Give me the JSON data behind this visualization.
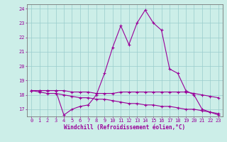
{
  "xlabel": "Windchill (Refroidissement éolien,°C)",
  "background_color": "#cceee8",
  "line_color": "#990099",
  "grid_color": "#99cccc",
  "xlim": [
    -0.5,
    23.5
  ],
  "ylim": [
    16.5,
    24.3
  ],
  "yticks": [
    17,
    18,
    19,
    20,
    21,
    22,
    23,
    24
  ],
  "xticks": [
    0,
    1,
    2,
    3,
    4,
    5,
    6,
    7,
    8,
    9,
    10,
    11,
    12,
    13,
    14,
    15,
    16,
    17,
    18,
    19,
    20,
    21,
    22,
    23
  ],
  "series1_x": [
    0,
    1,
    2,
    3,
    4,
    5,
    6,
    7,
    8,
    9,
    10,
    11,
    12,
    13,
    14,
    15,
    16,
    17,
    18,
    19,
    20,
    21,
    22,
    23
  ],
  "series1_y": [
    18.3,
    18.3,
    18.3,
    18.3,
    16.6,
    17.0,
    17.2,
    17.3,
    18.0,
    19.5,
    21.3,
    22.8,
    21.5,
    23.0,
    23.9,
    23.0,
    22.5,
    19.8,
    19.5,
    18.3,
    18.0,
    17.0,
    16.8,
    16.6
  ],
  "series2_x": [
    0,
    1,
    2,
    3,
    4,
    5,
    6,
    7,
    8,
    9,
    10,
    11,
    12,
    13,
    14,
    15,
    16,
    17,
    18,
    19,
    20,
    21,
    22,
    23
  ],
  "series2_y": [
    18.3,
    18.3,
    18.3,
    18.3,
    18.3,
    18.2,
    18.2,
    18.2,
    18.1,
    18.1,
    18.1,
    18.2,
    18.2,
    18.2,
    18.2,
    18.2,
    18.2,
    18.2,
    18.2,
    18.2,
    18.1,
    18.0,
    17.9,
    17.8
  ],
  "series3_x": [
    0,
    1,
    2,
    3,
    4,
    5,
    6,
    7,
    8,
    9,
    10,
    11,
    12,
    13,
    14,
    15,
    16,
    17,
    18,
    19,
    20,
    21,
    22,
    23
  ],
  "series3_y": [
    18.3,
    18.2,
    18.1,
    18.1,
    18.0,
    17.9,
    17.8,
    17.8,
    17.7,
    17.7,
    17.6,
    17.5,
    17.4,
    17.4,
    17.3,
    17.3,
    17.2,
    17.2,
    17.1,
    17.0,
    17.0,
    16.9,
    16.8,
    16.7
  ]
}
